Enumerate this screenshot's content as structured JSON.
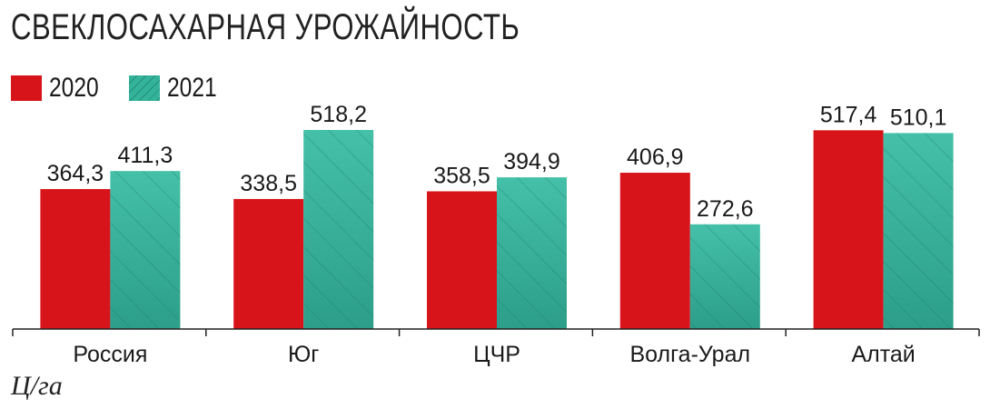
{
  "title": "СВЕКЛОСАХАРНАЯ УРОЖАЙНОСТЬ",
  "unit": "Ц/га",
  "colors": {
    "2020": "#d7141a",
    "2021": "#34b39b",
    "hatch": "#1b7d6b"
  },
  "chart_data": {
    "type": "bar",
    "title": "СВЕКЛОСАХАРНАЯ УРОЖАЙНОСТЬ",
    "ylabel": "Ц/га",
    "categories": [
      "Россия",
      "Юг",
      "ЦЧР",
      "Волга-Урал",
      "Алтай"
    ],
    "series": [
      {
        "name": "2020",
        "values": [
          364.3,
          338.5,
          358.5,
          406.9,
          517.4
        ],
        "labels": [
          "364,3",
          "338,5",
          "358,5",
          "406,9",
          "517,4"
        ]
      },
      {
        "name": "2021",
        "values": [
          411.3,
          518.2,
          394.9,
          272.6,
          510.1
        ],
        "labels": [
          "411,3",
          "518,2",
          "394,9",
          "272,6",
          "510,1"
        ]
      }
    ],
    "ylim": [
      0,
      518.2
    ],
    "grid": false,
    "legend": "top-left"
  }
}
